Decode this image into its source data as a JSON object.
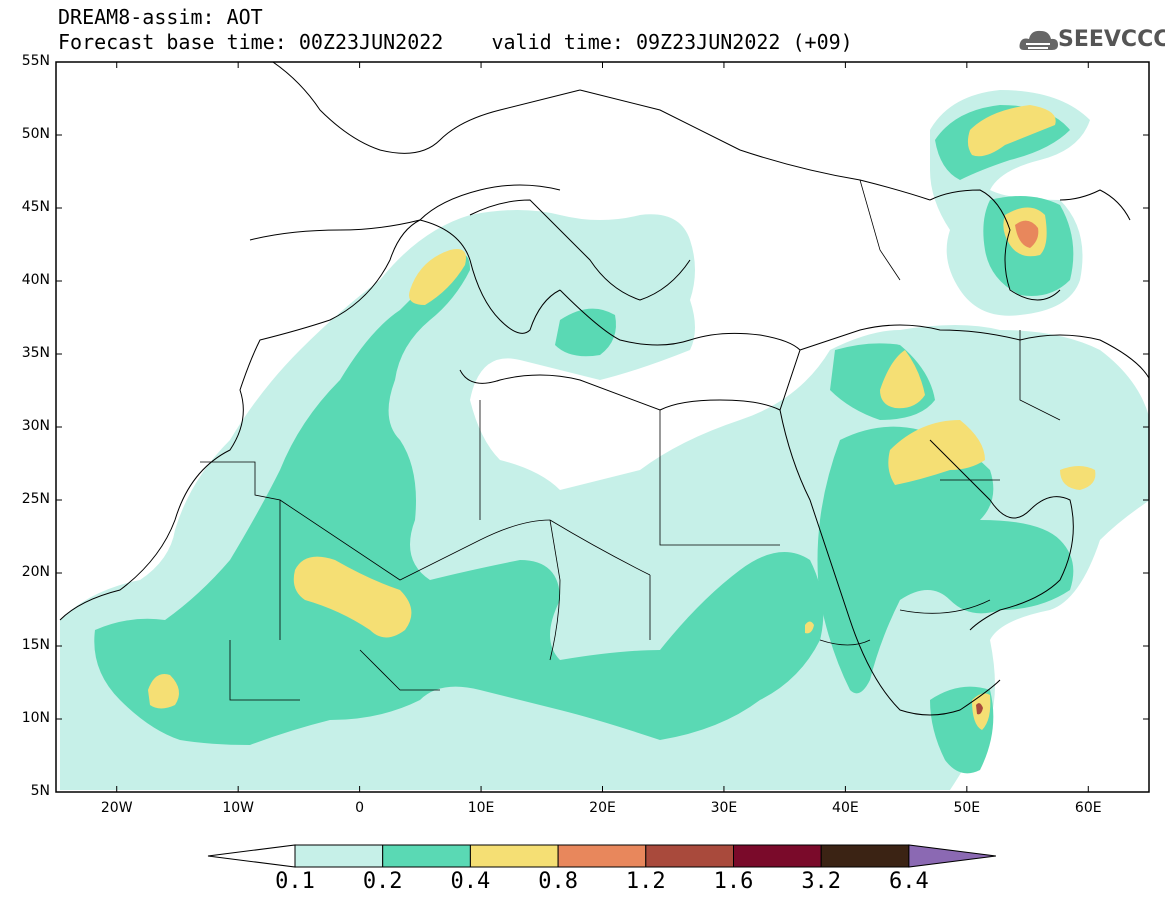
{
  "header": {
    "line1": "DREAM8-assim: AOT",
    "line2": "Forecast base time: 00Z23JUN2022    valid time: 09Z23JUN2022 (+09)"
  },
  "logo": {
    "text": "SEEVCCC",
    "icon": "cloud-icon"
  },
  "map": {
    "lat_labels": [
      "55N",
      "50N",
      "45N",
      "40N",
      "35N",
      "30N",
      "25N",
      "20N",
      "15N",
      "10N",
      "5N"
    ],
    "lon_labels": [
      "20W",
      "10W",
      "0",
      "10E",
      "20E",
      "30E",
      "40E",
      "50E",
      "60E"
    ],
    "lat_range": [
      5,
      55
    ],
    "lon_range": [
      -25,
      65
    ]
  },
  "colorbar": {
    "levels": [
      "0.1",
      "0.2",
      "0.4",
      "0.8",
      "1.2",
      "1.6",
      "3.2",
      "6.4"
    ],
    "colors": [
      "#ffffff",
      "#c6f0e8",
      "#5ad9b4",
      "#f5df74",
      "#e8875c",
      "#a94a3c",
      "#7a0a2a",
      "#3b2314",
      "#8b69b3"
    ]
  },
  "palette": {
    "level1": "#c6f0e8",
    "level2": "#5ad9b4",
    "level3": "#f5df74",
    "level4": "#e8875c",
    "level5": "#a94a3c"
  }
}
